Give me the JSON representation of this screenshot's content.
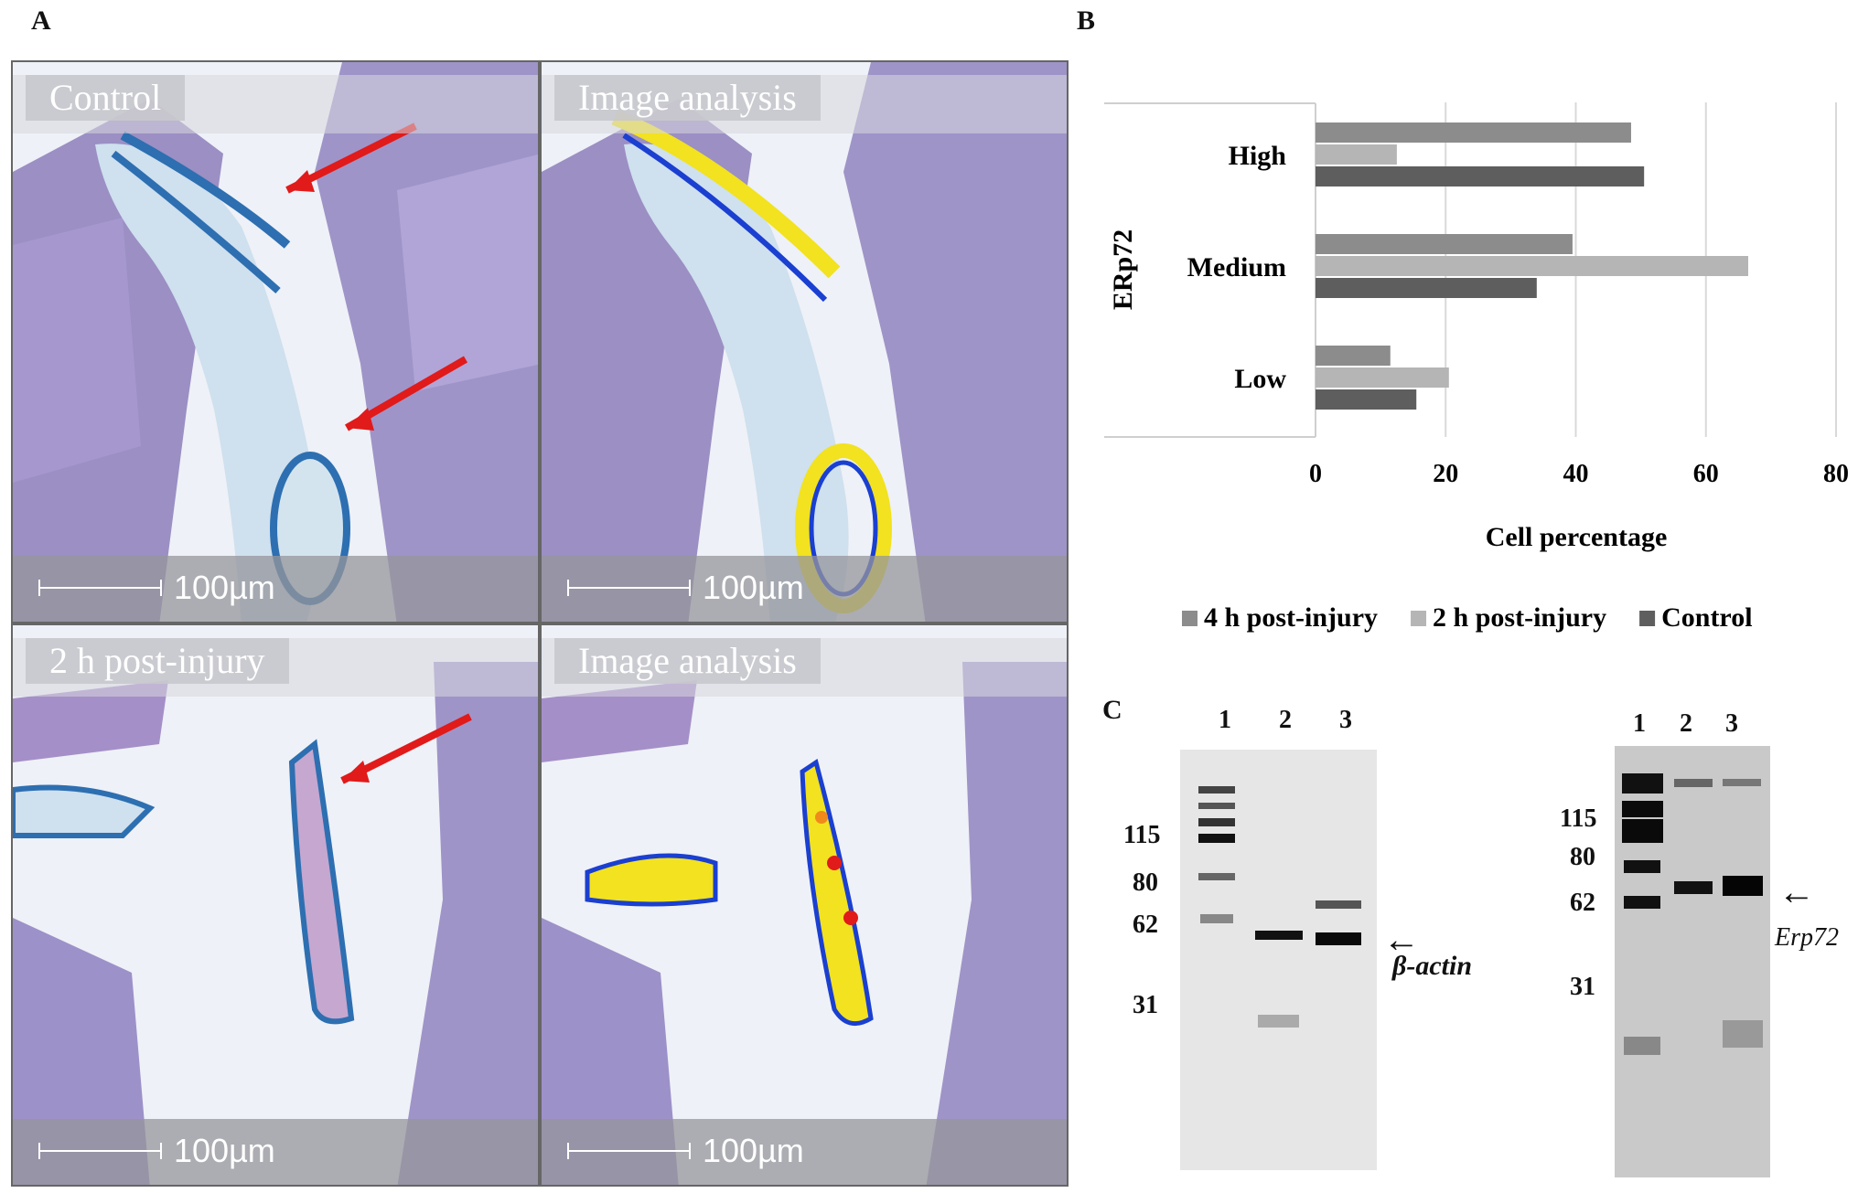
{
  "figure": {
    "panel_a": {
      "letter": "A",
      "images": [
        {
          "label": "Control",
          "scale": "100µm"
        },
        {
          "label": "Image analysis",
          "scale": "100µm"
        },
        {
          "label": "2 h post-injury",
          "scale": "100µm"
        },
        {
          "label": "Image analysis",
          "scale": "100µm"
        }
      ]
    },
    "panel_b": {
      "letter": "B"
    },
    "panel_c": {
      "letter": "C",
      "blot_left": {
        "lanes": [
          "1",
          "2",
          "3"
        ],
        "markers": [
          "115",
          "80",
          "62",
          "31"
        ],
        "target": "β-actin"
      },
      "blot_right": {
        "lanes": [
          "1",
          "2",
          "3"
        ],
        "markers": [
          "115",
          "80",
          "62",
          "31"
        ],
        "target": "Erp72"
      },
      "arrow": "←"
    }
  },
  "chart_data": {
    "type": "bar",
    "orientation": "horizontal",
    "categories": [
      "High",
      "Medium",
      "Low"
    ],
    "series": [
      {
        "name": "4 h post-injury",
        "color": "#8c8c8c",
        "values": [
          48.5,
          39.5,
          11.5
        ]
      },
      {
        "name": "2 h post-injury",
        "color": "#b5b5b5",
        "values": [
          12.5,
          66.5,
          20.5
        ]
      },
      {
        "name": "Control",
        "color": "#5e5e5e",
        "values": [
          50.5,
          34,
          15.5
        ]
      }
    ],
    "ylabel": "ERp72",
    "xlabel": "Cell percentage",
    "xticks": [
      "0",
      "20",
      "40",
      "60",
      "80"
    ],
    "xlim": [
      0,
      80
    ],
    "grid": true,
    "legend_position": "bottom"
  }
}
